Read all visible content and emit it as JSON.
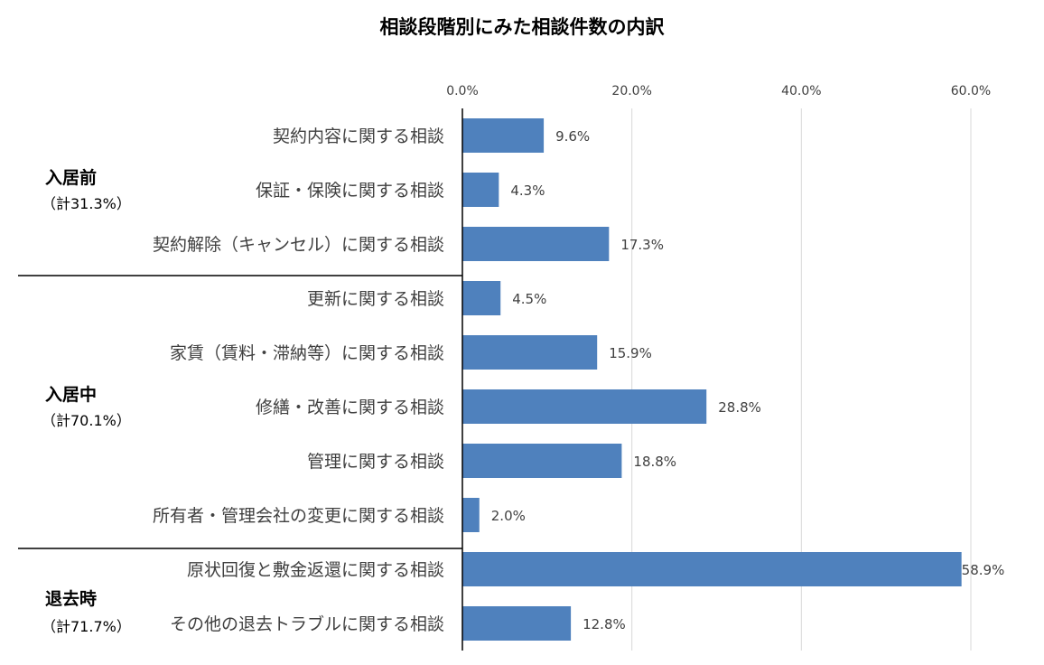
{
  "chart_data": {
    "type": "bar",
    "orientation": "horizontal",
    "title": "相談段階別にみた相談件数の内訳",
    "xlabel": "",
    "ylabel": "",
    "xlim": [
      0,
      60
    ],
    "x_ticks": [
      "0.0%",
      "20.0%",
      "40.0%",
      "60.0%"
    ],
    "x_tick_values": [
      0,
      20,
      40,
      60
    ],
    "grid": true,
    "bar_color": "#4f81bd",
    "categories": [
      "契約内容に関する相談",
      "保証・保険に関する相談",
      "契約解除（キャンセル）に関する相談",
      "更新に関する相談",
      "家賃（賃料・滞納等）に関する相談",
      "修繕・改善に関する相談",
      "管理に関する相談",
      "所有者・管理会社の変更に関する相談",
      "原状回復と敷金返還に関する相談",
      "その他の退去トラブルに関する相談"
    ],
    "values": [
      9.6,
      4.3,
      17.3,
      4.5,
      15.9,
      28.8,
      18.8,
      2.0,
      58.9,
      12.8
    ],
    "value_labels": [
      "9.6%",
      "4.3%",
      "17.3%",
      "4.5%",
      "15.9%",
      "28.8%",
      "18.8%",
      "2.0%",
      "58.9%",
      "12.8%"
    ],
    "groups": [
      {
        "name": "入居前",
        "total": "（計31.3%）",
        "start": 0,
        "count": 3
      },
      {
        "name": "入居中",
        "total": "（計70.1%）",
        "start": 3,
        "count": 5
      },
      {
        "name": "退去時",
        "total": "（計71.7%）",
        "start": 8,
        "count": 2
      }
    ]
  }
}
